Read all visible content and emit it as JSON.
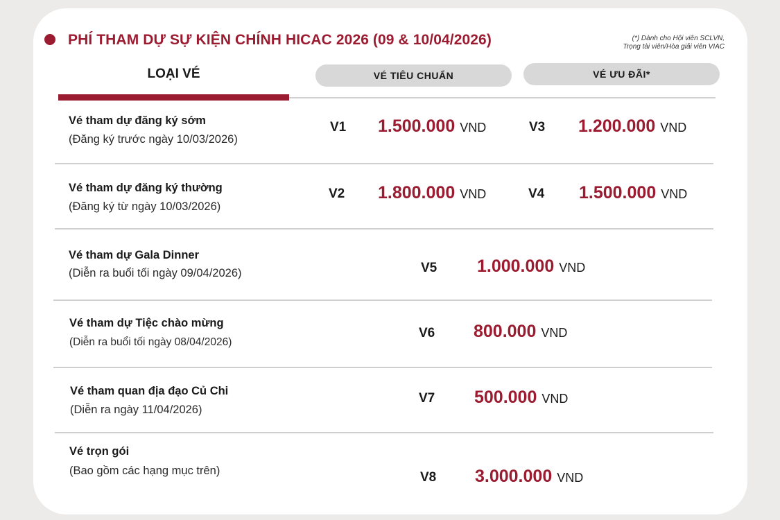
{
  "header": {
    "title": "PHÍ THAM DỰ SỰ KIỆN CHÍNH HICAC 2026 (09 & 10/04/2026)",
    "note_line1": "(*) Dành cho Hội viên SCLVN,",
    "note_line2": "Trọng tài viên/Hòa giải viên VIAC"
  },
  "columns": {
    "type": "LOẠI VÉ",
    "standard": "VÉ TIÊU CHUẨN",
    "preferential": "VÉ ƯU ĐÃI*"
  },
  "rows": [
    {
      "name": "Vé tham dự đăng ký sớm",
      "sub": "(Đăng ký trước ngày 10/03/2026)",
      "std_code": "V1",
      "std_amount": "1.500.000",
      "std_unit": "VND",
      "pref_code": "V3",
      "pref_amount": "1.200.000",
      "pref_unit": "VND"
    },
    {
      "name": "Vé tham dự đăng ký thường",
      "sub": "(Đăng ký từ ngày 10/03/2026)",
      "std_code": "V2",
      "std_amount": "1.800.000",
      "std_unit": "VND",
      "pref_code": "V4",
      "pref_amount": "1.500.000",
      "pref_unit": "VND"
    },
    {
      "name": "Vé tham dự Gala Dinner",
      "sub": "(Diễn ra buổi tối ngày 09/04/2026)",
      "code": "V5",
      "amount": "1.000.000",
      "unit": "VND"
    },
    {
      "name": "Vé tham dự Tiệc chào mừng",
      "sub": "(Diễn ra buổi tối ngày 08/04/2026)",
      "code": "V6",
      "amount": "800.000",
      "unit": "VND"
    },
    {
      "name": "Vé tham quan địa đạo Củ Chi",
      "sub": "(Diễn ra ngày 11/04/2026)",
      "code": "V7",
      "amount": "500.000",
      "unit": "VND"
    },
    {
      "name": "Vé trọn gói",
      "sub": "(Bao gồm các hạng mục trên)",
      "code": "V8",
      "amount": "3.000.000",
      "unit": "VND"
    }
  ]
}
